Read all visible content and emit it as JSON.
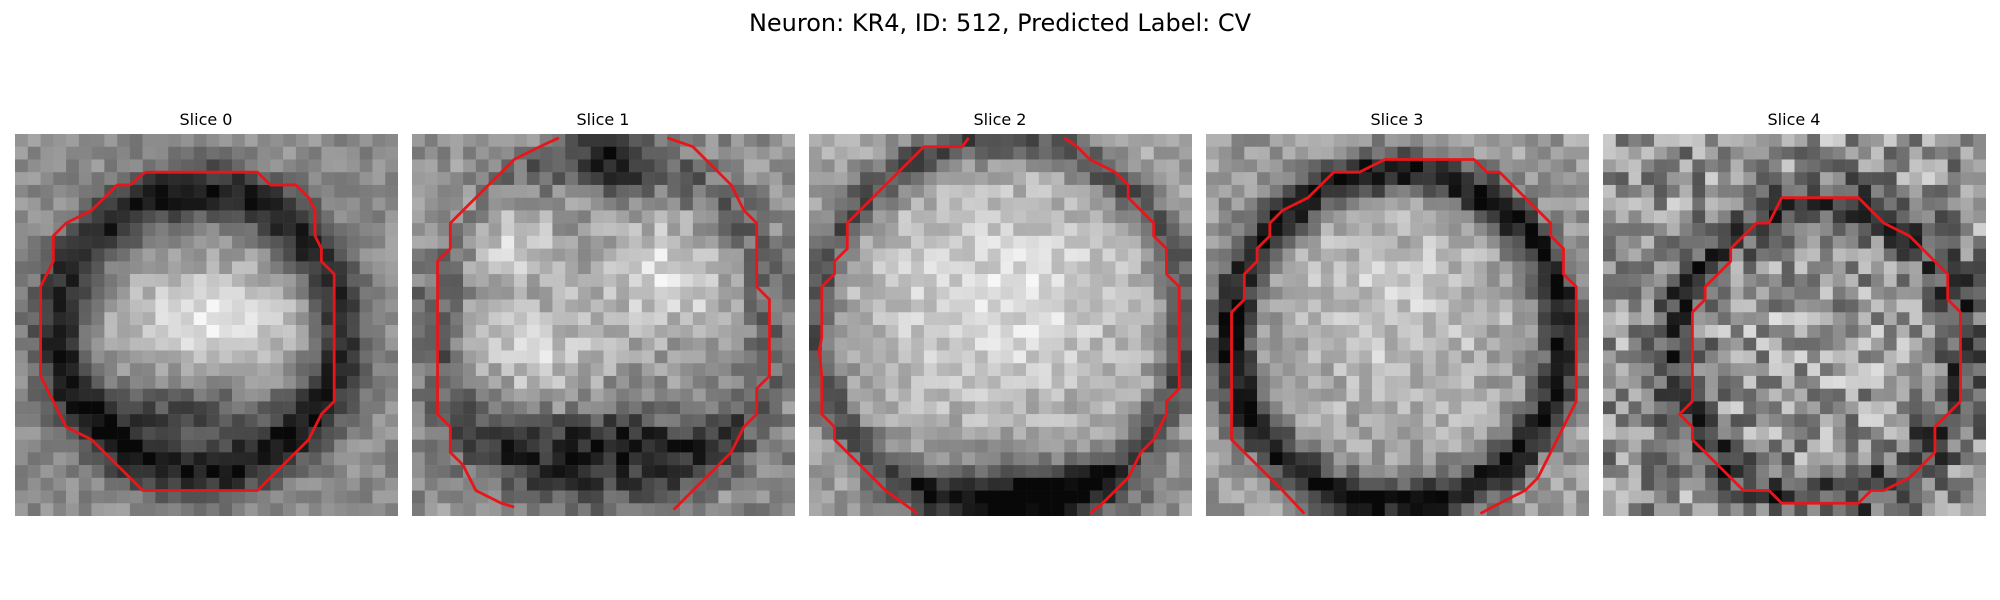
{
  "figure": {
    "title": "Neuron: KR4, ID: 512, Predicted Label: CV"
  },
  "panels": [
    {
      "title": "Slice 0",
      "contour_color": "#e8161b",
      "pattern": "ring-with-bright-blob"
    },
    {
      "title": "Slice 1",
      "contour_color": "#e8161b",
      "pattern": "bright-lobes-dark-bottom"
    },
    {
      "title": "Slice 2",
      "contour_color": "#e8161b",
      "pattern": "bright-disc-dark-bottom"
    },
    {
      "title": "Slice 3",
      "contour_color": "#e8161b",
      "pattern": "dark-ring-bright-center"
    },
    {
      "title": "Slice 4",
      "contour_color": "#e8161b",
      "pattern": "noisy-dark-ring"
    }
  ]
}
